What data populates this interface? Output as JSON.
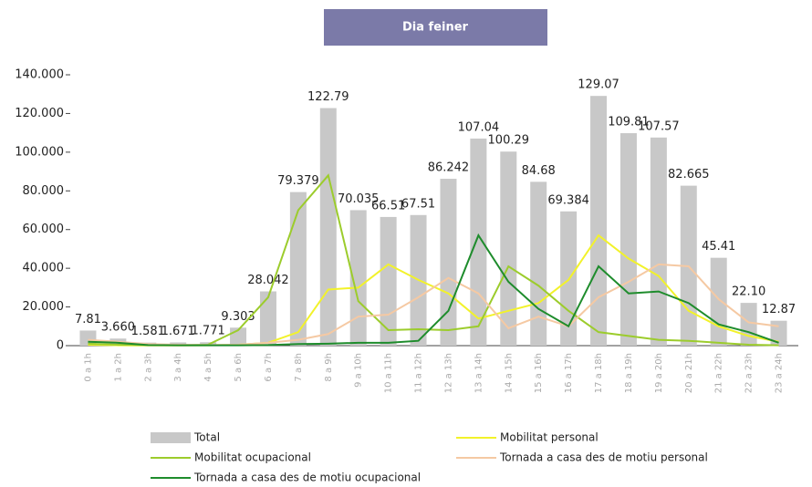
{
  "chart_data": {
    "type": "bar",
    "title": "Dia feiner",
    "categories": [
      "0 a 1h",
      "1 a 2h",
      "2 a 3h",
      "3 a 4h",
      "4 a 5h",
      "5 a 6h",
      "6 a 7h",
      "7 a 8h",
      "8 a 9h",
      "9 a 10h",
      "10 a 11h",
      "11 a 12h",
      "12 a 13h",
      "13 a 14h",
      "14 a 15h",
      "15 a 16h",
      "16 a 17h",
      "17 a 18h",
      "18 a 19h",
      "19 a 20h",
      "20 a 21h",
      "21 a 22h",
      "22 a 23h",
      "23 a 24h"
    ],
    "series": [
      {
        "name": "Total",
        "type": "bar",
        "color": "#c8c8c8",
        "values": [
          7810,
          3660,
          1581,
          1671,
          1771,
          9303,
          28042,
          79379,
          122790,
          70035,
          66510,
          67510,
          86242,
          107040,
          100290,
          84680,
          69384,
          129070,
          109810,
          107570,
          82665,
          45410,
          22100,
          12870
        ],
        "value_labels": [
          "7.81",
          "3.660",
          "1.581",
          "1.671",
          "1.771",
          "9.303",
          "28.042",
          "79.379",
          "122.79",
          "70.035",
          "66.51",
          "67.51",
          "86.242",
          "107.04",
          "100.29",
          "84.68",
          "69.384",
          "129.07",
          "109.81",
          "107.57",
          "82.665",
          "45.41",
          "22.10",
          "12.87"
        ]
      },
      {
        "name": "Mobilitat personal",
        "type": "line",
        "color": "#f2f22a",
        "values": [
          500,
          200,
          100,
          100,
          200,
          500,
          1500,
          7000,
          29000,
          30000,
          42000,
          34000,
          27000,
          14000,
          18000,
          22000,
          34000,
          57000,
          45000,
          36000,
          18000,
          10000,
          5000,
          2000
        ]
      },
      {
        "name": "Mobilitat ocupacional",
        "type": "line",
        "color": "#9ccc2c",
        "values": [
          1000,
          500,
          300,
          300,
          500,
          8000,
          25000,
          70000,
          88000,
          23000,
          8000,
          8500,
          8000,
          10000,
          41000,
          31000,
          18000,
          7000,
          5000,
          3000,
          2500,
          1500,
          500,
          200
        ]
      },
      {
        "name": "Tornada a casa des de motiu personal",
        "type": "line",
        "color": "#f5c9a3",
        "values": [
          3000,
          2000,
          800,
          500,
          300,
          500,
          1500,
          3000,
          6000,
          15000,
          16000,
          25000,
          35000,
          27000,
          9000,
          15000,
          10000,
          25000,
          33000,
          42000,
          41000,
          24000,
          12000,
          10000
        ]
      },
      {
        "name": "Tornada a casa des de motiu ocupacional",
        "type": "line",
        "color": "#1e8c2c",
        "values": [
          2000,
          1500,
          300,
          200,
          200,
          200,
          300,
          800,
          1000,
          1500,
          1500,
          2500,
          18000,
          57000,
          33000,
          19000,
          10000,
          41000,
          27000,
          28000,
          22000,
          11000,
          7000,
          1500
        ]
      }
    ],
    "ylim": [
      0,
      140000
    ],
    "yticks": [
      0,
      {
        "value": 20000,
        "label": "20.000"
      },
      {
        "value": 40000,
        "label": "40.000"
      },
      {
        "value": 60000,
        "label": "60.000"
      },
      {
        "value": 80000,
        "label": "80.000"
      },
      {
        "value": 100000,
        "label": "100.000"
      },
      {
        "value": 120000,
        "label": "120.000"
      },
      {
        "value": 140000,
        "label": "140.000"
      }
    ]
  }
}
